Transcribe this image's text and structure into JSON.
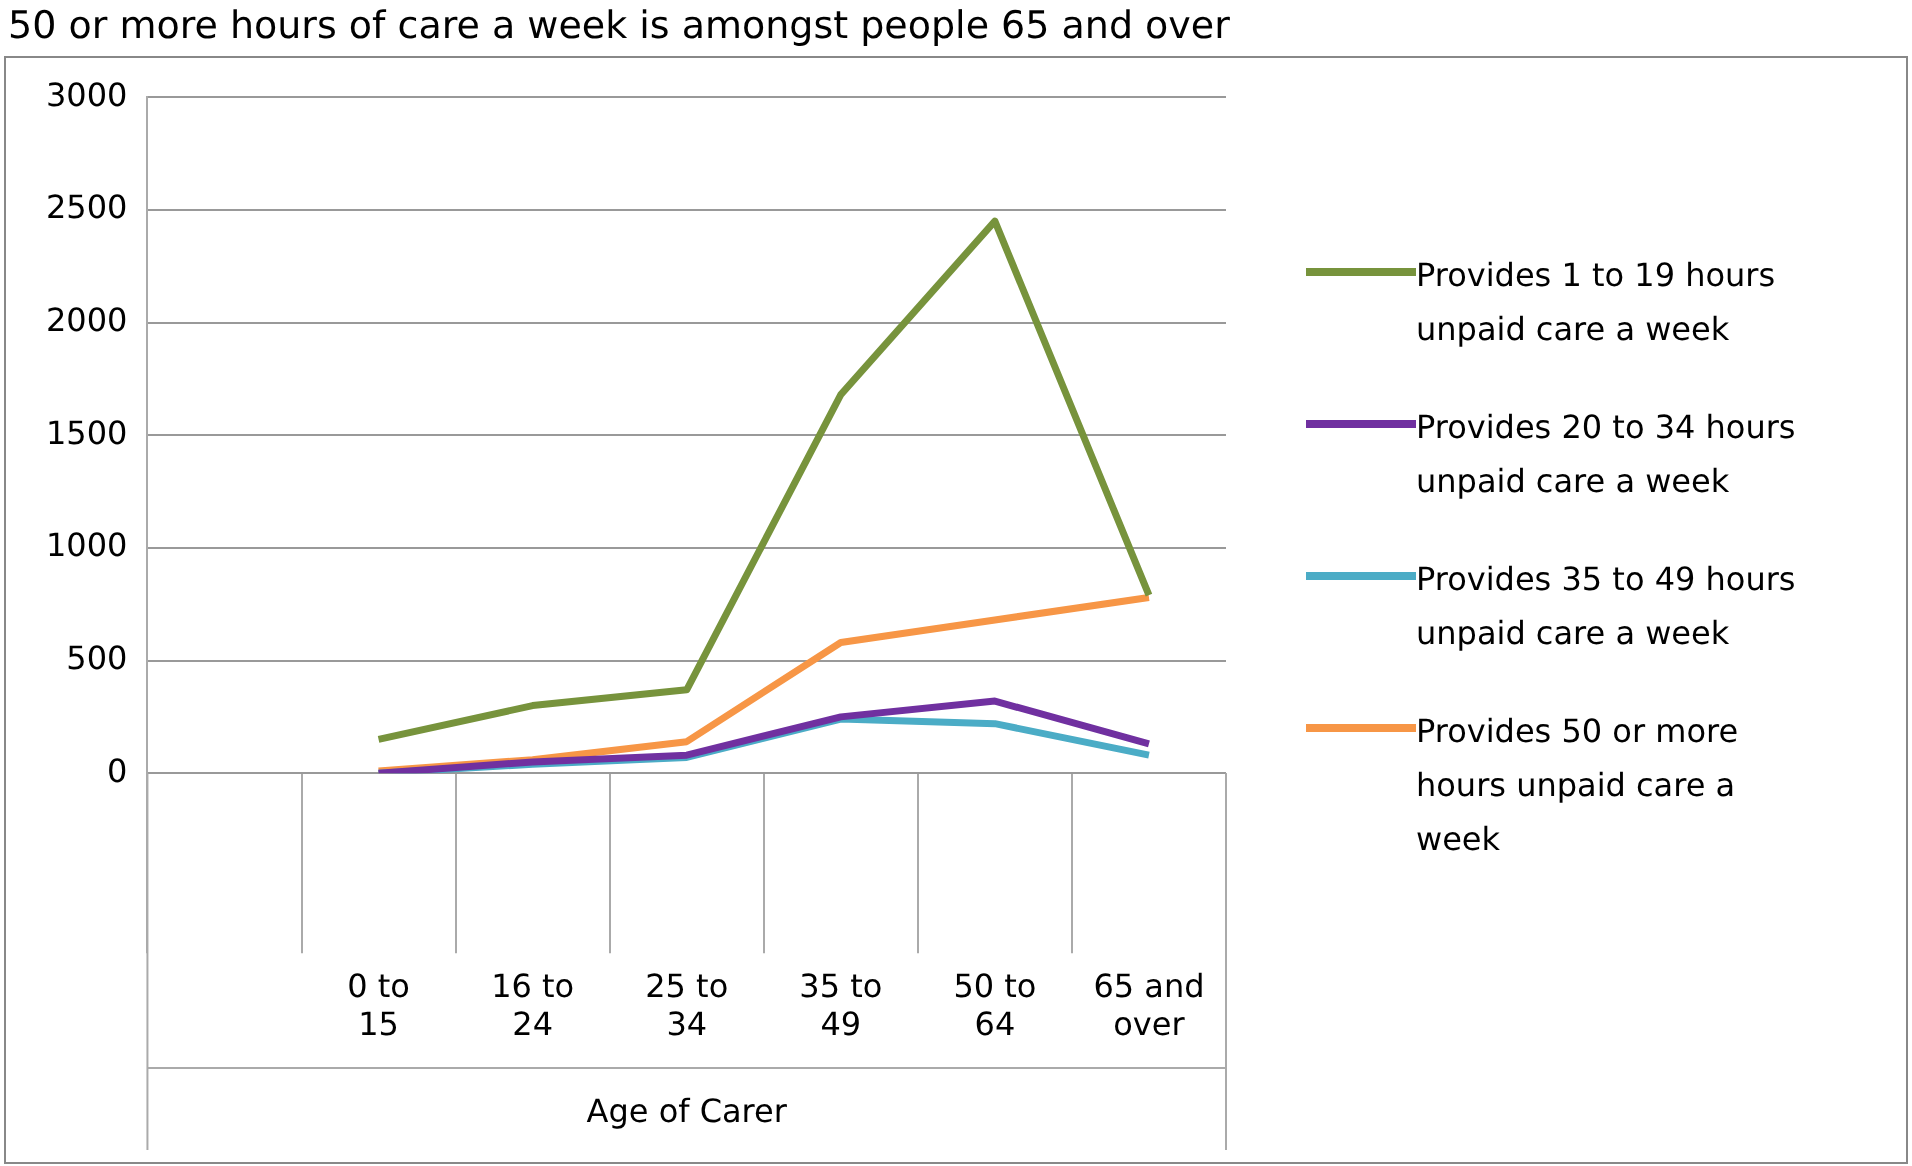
{
  "chart_data": {
    "type": "line",
    "title": "50 or more hours of care a week is amongst people 65 and over",
    "xlabel": "Age of Carer",
    "categories": [
      null,
      "0 to 15",
      "16 to 24",
      "25 to 34",
      "35 to 49",
      "50 to 64",
      "65 and over"
    ],
    "series": [
      {
        "name": "Provides 1 to 19 hours unpaid care a week",
        "color": "#77933c",
        "values": [
          null,
          150,
          300,
          370,
          1680,
          2450,
          790
        ]
      },
      {
        "name": "Provides 20 to 34 hours unpaid care a week",
        "color": "#7030a0",
        "values": [
          null,
          0,
          50,
          80,
          250,
          320,
          130
        ]
      },
      {
        "name": "Provides 35 to 49 hours unpaid care a week",
        "color": "#4bacc6",
        "values": [
          null,
          0,
          40,
          70,
          240,
          220,
          80
        ]
      },
      {
        "name": "Provides 50 or more hours unpaid care a week",
        "color": "#f79646",
        "values": [
          null,
          10,
          60,
          140,
          580,
          680,
          780
        ]
      }
    ],
    "ylim": [
      0,
      3000
    ],
    "yticks": [
      0,
      500,
      1000,
      1500,
      2000,
      2500,
      3000
    ],
    "grid": "y",
    "legend": "right",
    "marker": "none",
    "line_style": "solid"
  }
}
